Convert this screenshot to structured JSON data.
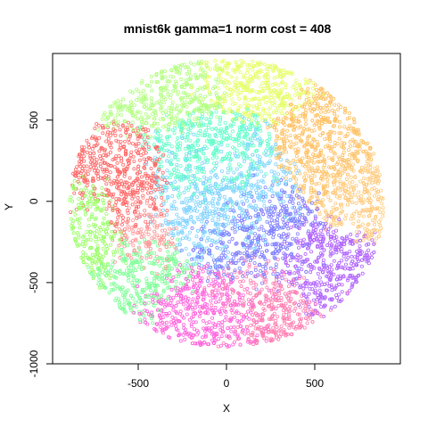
{
  "chart_data": {
    "type": "scatter",
    "title": "mnist6k gamma=1 norm cost = 408",
    "xlabel": "X",
    "ylabel": "Y",
    "xlim": [
      -985,
      985
    ],
    "ylim": [
      -1000,
      910
    ],
    "xticks": [
      -500,
      0,
      500
    ],
    "xtick_labels": [
      "-500",
      "0",
      "500"
    ],
    "yticks": [
      -1000,
      -500,
      0,
      500
    ],
    "ytick_labels": [
      "-1000",
      "-500",
      "0",
      "500"
    ],
    "grid": false,
    "legend": "none",
    "marker": "open-circle",
    "cloud": {
      "center": [
        0,
        -10
      ],
      "radius_x": 890,
      "radius_y": 890,
      "y_min": -920,
      "y_max": 880,
      "point_count": 6000
    },
    "clusters": [
      {
        "color": "#ff6b6b",
        "center": [
          -560,
          60
        ],
        "spread": [
          150,
          200
        ]
      },
      {
        "color": "#ff9a9a",
        "center": [
          -470,
          -200
        ],
        "spread": [
          120,
          150
        ]
      },
      {
        "color": "#ffc266",
        "center": [
          600,
          380
        ],
        "spread": [
          170,
          220
        ]
      },
      {
        "color": "#ffcc80",
        "center": [
          720,
          80
        ],
        "spread": [
          120,
          180
        ]
      },
      {
        "color": "#b3ff80",
        "center": [
          -330,
          650
        ],
        "spread": [
          220,
          120
        ]
      },
      {
        "color": "#80ff99",
        "center": [
          -480,
          -450
        ],
        "spread": [
          170,
          150
        ]
      },
      {
        "color": "#66ffcc",
        "center": [
          -100,
          250
        ],
        "spread": [
          200,
          200
        ]
      },
      {
        "color": "#80d4ff",
        "center": [
          -50,
          0
        ],
        "spread": [
          250,
          250
        ]
      },
      {
        "color": "#8080ff",
        "center": [
          150,
          -250
        ],
        "spread": [
          220,
          220
        ]
      },
      {
        "color": "#b266ff",
        "center": [
          520,
          -400
        ],
        "spread": [
          180,
          170
        ]
      },
      {
        "color": "#ff66dd",
        "center": [
          -120,
          -650
        ],
        "spread": [
          230,
          150
        ]
      },
      {
        "color": "#ff80b3",
        "center": [
          200,
          -580
        ],
        "spread": [
          200,
          170
        ]
      },
      {
        "color": "#e6ff66",
        "center": [
          150,
          700
        ],
        "spread": [
          200,
          110
        ]
      },
      {
        "color": "#99ff66",
        "center": [
          -720,
          -180
        ],
        "spread": [
          100,
          180
        ]
      }
    ]
  }
}
